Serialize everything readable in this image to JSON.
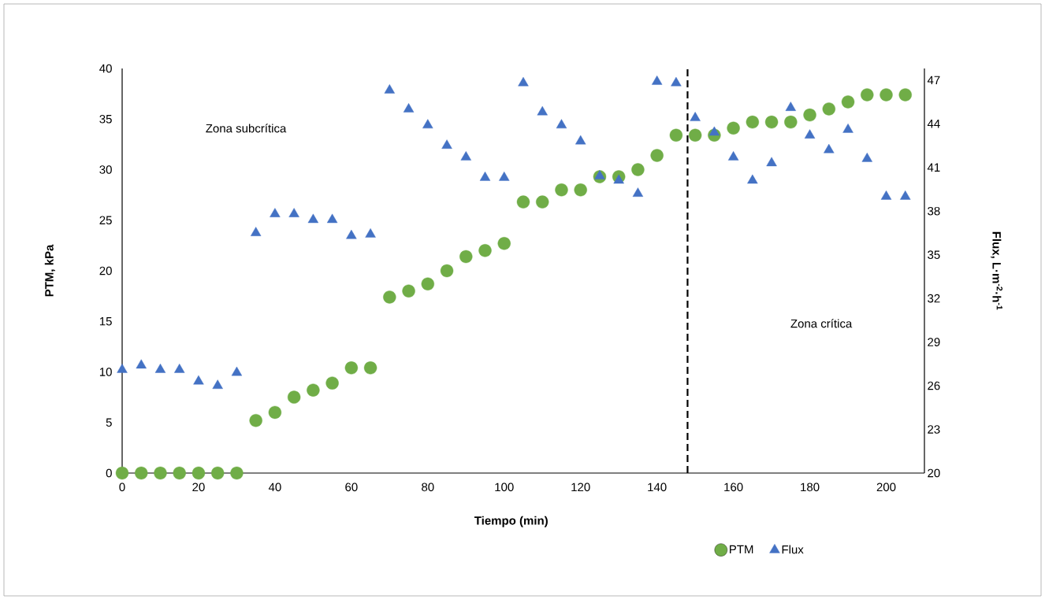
{
  "chart_data": {
    "type": "scatter",
    "xlabel": "Tiempo (min)",
    "ylabel": "PTM, kPa",
    "y2label": "Flux, L·m$^{-2}$·h$^{-1}$",
    "x": [
      0,
      5,
      10,
      15,
      20,
      25,
      30,
      35,
      40,
      45,
      50,
      55,
      60,
      65,
      70,
      75,
      80,
      85,
      90,
      95,
      100,
      105,
      110,
      115,
      120,
      125,
      130,
      135,
      140,
      145,
      150,
      155,
      160,
      165,
      170,
      175,
      180,
      185,
      190,
      195,
      200,
      205
    ],
    "series": [
      {
        "name": "PTM",
        "color": "#70ad47",
        "marker": "circle",
        "values": [
          0,
          0,
          0,
          0,
          0,
          0,
          0,
          5.2,
          6.0,
          7.5,
          8.2,
          8.9,
          10.4,
          10.4,
          17.4,
          18.0,
          18.7,
          20.0,
          21.4,
          22.0,
          22.7,
          26.8,
          26.8,
          28.0,
          28.0,
          29.3,
          29.3,
          30.0,
          31.4,
          33.4,
          33.4,
          33.4,
          34.1,
          34.7,
          34.7,
          34.7,
          35.4,
          36.0,
          36.7,
          37.4,
          37.4,
          37.4
        ]
      },
      {
        "name": "Flux",
        "color": "#4472c4",
        "marker": "triangle",
        "axis": "y2",
        "values": [
          27.1,
          27.4,
          27.1,
          27.1,
          26.3,
          26.0,
          26.9,
          36.5,
          37.8,
          37.8,
          37.4,
          37.4,
          36.3,
          36.4,
          46.3,
          45.0,
          43.9,
          42.5,
          41.7,
          40.3,
          40.3,
          46.8,
          44.8,
          43.9,
          42.8,
          40.4,
          40.1,
          39.2,
          46.9,
          46.8,
          44.4,
          43.4,
          41.7,
          40.1,
          41.3,
          45.1,
          43.2,
          42.2,
          43.6,
          41.6,
          39.0,
          39.0
        ]
      }
    ],
    "xlim": [
      0,
      210
    ],
    "xticks": [
      0,
      20,
      40,
      60,
      80,
      100,
      120,
      140,
      160,
      180,
      200
    ],
    "ylim": [
      0,
      40
    ],
    "yticks": [
      0,
      5,
      10,
      15,
      20,
      25,
      30,
      35,
      40
    ],
    "y2lim": [
      20,
      47.8
    ],
    "y2ticks": [
      20,
      23,
      26,
      29,
      32,
      35,
      38,
      41,
      44,
      47
    ],
    "ref_lines": [
      {
        "axis": "x",
        "value": 148,
        "color": "#000000",
        "line_style": "dashed"
      }
    ],
    "annotations": [
      "Zona subcrítica",
      "Zona crítica"
    ],
    "grid": false,
    "legend": "bottom"
  }
}
